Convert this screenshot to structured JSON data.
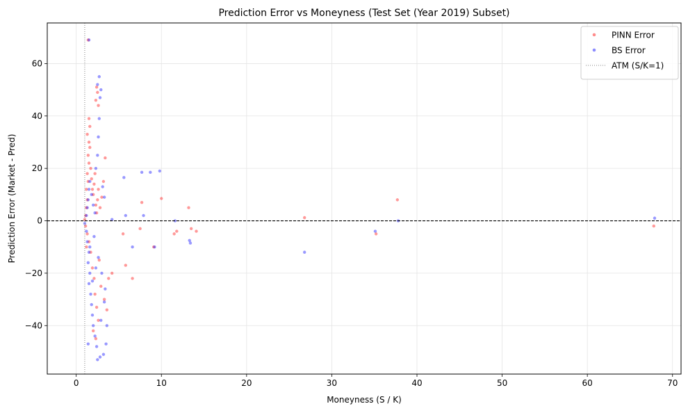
{
  "chart_data": {
    "type": "scatter",
    "title": "Prediction Error vs Moneyness (Test Set (Year 2019) Subset)",
    "xlabel": "Moneyness (S / K)",
    "ylabel": "Prediction Error (Market - Pred)",
    "xlim": [
      -3.4,
      71.0
    ],
    "ylim": [
      -58.5,
      75.5
    ],
    "xticks": [
      0,
      10,
      20,
      30,
      40,
      50,
      60,
      70
    ],
    "yticks": [
      -40,
      -20,
      0,
      20,
      40,
      60
    ],
    "ytick_labels": [
      "−40",
      "−20",
      "0",
      "20",
      "40",
      "60"
    ],
    "grid": true,
    "legend_position": "top-right",
    "reference_lines": {
      "zero_error": {
        "y": 0,
        "style": "dashed",
        "color": "#000000"
      },
      "atm": {
        "x": 1,
        "style": "dotted",
        "color": "#808080",
        "label": "ATM (S/K=1)"
      }
    },
    "series": [
      {
        "name": "PINN Error",
        "color": "#ff0000",
        "points": [
          [
            1.0,
            0.5
          ],
          [
            1.1,
            2
          ],
          [
            1.2,
            5
          ],
          [
            1.3,
            8
          ],
          [
            1.2,
            12
          ],
          [
            1.4,
            15
          ],
          [
            1.3,
            18
          ],
          [
            1.5,
            22
          ],
          [
            1.4,
            25
          ],
          [
            1.6,
            28
          ],
          [
            1.5,
            30
          ],
          [
            1.3,
            33
          ],
          [
            1.6,
            36
          ],
          [
            1.5,
            39
          ],
          [
            1.7,
            20
          ],
          [
            1.8,
            16
          ],
          [
            1.9,
            12
          ],
          [
            2.0,
            10
          ],
          [
            2.1,
            14
          ],
          [
            2.2,
            18
          ],
          [
            2.3,
            6
          ],
          [
            2.4,
            3
          ],
          [
            2.5,
            8
          ],
          [
            2.6,
            12
          ],
          [
            2.8,
            5
          ],
          [
            3.0,
            9
          ],
          [
            3.2,
            15
          ],
          [
            3.4,
            24
          ],
          [
            2.3,
            46
          ],
          [
            2.5,
            49
          ],
          [
            2.4,
            51
          ],
          [
            2.6,
            44
          ],
          [
            1.4,
            69
          ],
          [
            1.1,
            -2
          ],
          [
            1.3,
            -5
          ],
          [
            1.5,
            -8
          ],
          [
            1.7,
            -12
          ],
          [
            1.9,
            -18
          ],
          [
            2.1,
            -22
          ],
          [
            2.2,
            -28
          ],
          [
            2.4,
            -33
          ],
          [
            2.6,
            -38
          ],
          [
            2.3,
            -45
          ],
          [
            2.0,
            -42
          ],
          [
            2.9,
            -25
          ],
          [
            3.3,
            -30
          ],
          [
            3.6,
            -34
          ],
          [
            4.2,
            -20
          ],
          [
            3.8,
            -22
          ],
          [
            1.2,
            -10
          ],
          [
            2.7,
            -15
          ],
          [
            5.5,
            -5
          ],
          [
            5.8,
            -17
          ],
          [
            6.6,
            -22
          ],
          [
            7.7,
            7
          ],
          [
            7.5,
            -3
          ],
          [
            9.1,
            -10
          ],
          [
            10.0,
            8.5
          ],
          [
            11.5,
            -5
          ],
          [
            11.8,
            -4
          ],
          [
            13.2,
            5
          ],
          [
            13.5,
            -3
          ],
          [
            14.1,
            -4
          ],
          [
            26.8,
            1.2
          ],
          [
            35.2,
            -5
          ],
          [
            37.7,
            8
          ],
          [
            67.8,
            -2
          ]
        ]
      },
      {
        "name": "BS Error",
        "color": "#0000ff",
        "points": [
          [
            1.0,
            -1
          ],
          [
            1.2,
            -4
          ],
          [
            1.3,
            -8
          ],
          [
            1.5,
            -12
          ],
          [
            1.4,
            -16
          ],
          [
            1.6,
            -20
          ],
          [
            1.5,
            -24
          ],
          [
            1.7,
            -28
          ],
          [
            1.8,
            -32
          ],
          [
            1.9,
            -36
          ],
          [
            2.0,
            -40
          ],
          [
            2.2,
            -44
          ],
          [
            2.4,
            -48
          ],
          [
            2.5,
            -53
          ],
          [
            2.8,
            -52
          ],
          [
            3.2,
            -51
          ],
          [
            3.5,
            -47
          ],
          [
            1.4,
            -47
          ],
          [
            1.9,
            -23
          ],
          [
            2.3,
            -18
          ],
          [
            2.6,
            -14
          ],
          [
            3.0,
            -20
          ],
          [
            3.4,
            -26
          ],
          [
            3.6,
            -40
          ],
          [
            3.3,
            -31
          ],
          [
            2.9,
            -38
          ],
          [
            1.6,
            -10
          ],
          [
            2.1,
            -6
          ],
          [
            1.2,
            2
          ],
          [
            1.3,
            5
          ],
          [
            1.4,
            8
          ],
          [
            1.5,
            12
          ],
          [
            1.6,
            15
          ],
          [
            1.8,
            10
          ],
          [
            2.0,
            6
          ],
          [
            2.3,
            20
          ],
          [
            2.5,
            25
          ],
          [
            2.6,
            32
          ],
          [
            2.7,
            39
          ],
          [
            2.8,
            47
          ],
          [
            2.9,
            50
          ],
          [
            2.7,
            55
          ],
          [
            2.5,
            52
          ],
          [
            2.2,
            3
          ],
          [
            3.1,
            13
          ],
          [
            3.3,
            9
          ],
          [
            1.5,
            69
          ],
          [
            4.2,
            0.5
          ],
          [
            5.6,
            16.5
          ],
          [
            5.8,
            2
          ],
          [
            7.7,
            18.5
          ],
          [
            7.9,
            2
          ],
          [
            8.7,
            18.5
          ],
          [
            9.8,
            19
          ],
          [
            9.2,
            -10
          ],
          [
            6.6,
            -10
          ],
          [
            11.6,
            0
          ],
          [
            13.3,
            -7.5
          ],
          [
            13.4,
            -8.5
          ],
          [
            26.8,
            -12
          ],
          [
            35.1,
            -4
          ],
          [
            37.8,
            0
          ],
          [
            67.9,
            1
          ]
        ]
      }
    ],
    "legend": [
      {
        "label": "PINN Error",
        "kind": "marker",
        "color": "#ff0000"
      },
      {
        "label": "BS Error",
        "kind": "marker",
        "color": "#0000ff"
      },
      {
        "label": "ATM (S/K=1)",
        "kind": "dotted-line",
        "color": "#808080"
      }
    ]
  }
}
